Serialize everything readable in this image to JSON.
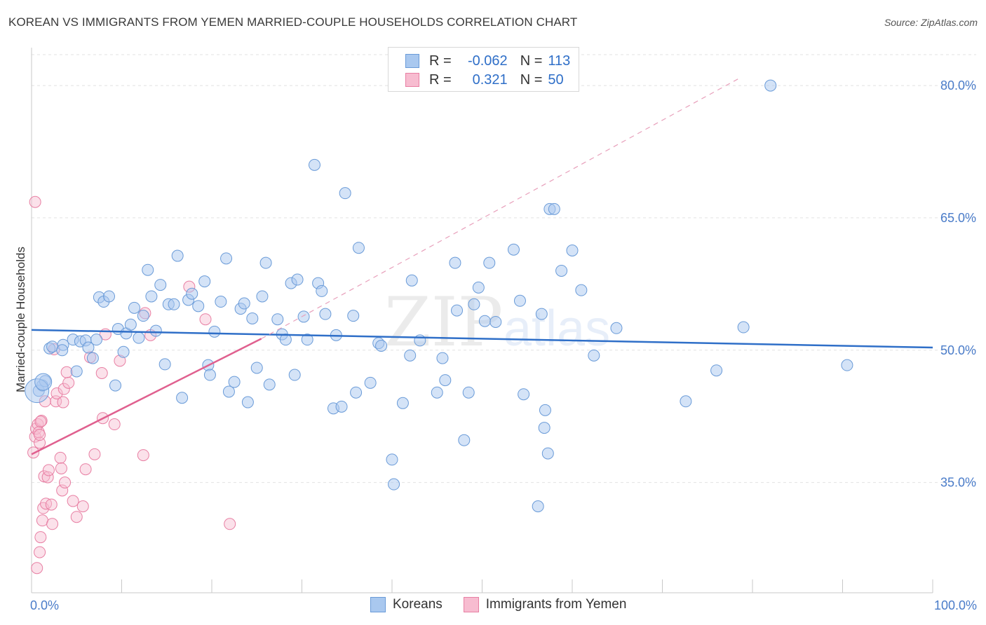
{
  "header": {
    "title": "KOREAN VS IMMIGRANTS FROM YEMEN MARRIED-COUPLE HOUSEHOLDS CORRELATION CHART",
    "source": "Source: ZipAtlas.com"
  },
  "watermark": {
    "zip": "ZIP",
    "atlas": "atlas"
  },
  "colors": {
    "koreans_fill": "#a9c8ef",
    "koreans_stroke": "#6a9bd8",
    "koreans_line": "#2f6fc8",
    "yemen_fill": "#f7bcd0",
    "yemen_stroke": "#e87fa3",
    "yemen_line": "#e0608f",
    "tick_label": "#4a7cc9",
    "grid": "#e2e2e2"
  },
  "legend": {
    "rows": [
      {
        "r_label": "R =",
        "r_value": "-0.062",
        "n_label": "N =",
        "n_value": "113"
      },
      {
        "r_label": "R =",
        "r_value": "0.321",
        "n_label": "N =",
        "n_value": "50"
      }
    ]
  },
  "bottom_legend": {
    "koreans": "Koreans",
    "yemen": "Immigrants from Yemen"
  },
  "chart_data": {
    "type": "scatter",
    "title": "KOREAN VS IMMIGRANTS FROM YEMEN MARRIED-COUPLE HOUSEHOLDS CORRELATION CHART",
    "xlabel": "",
    "ylabel": "Married-couple Households",
    "xlim": [
      0,
      100
    ],
    "ylim": [
      22.5,
      83.5
    ],
    "x_tick_labels": [
      "0.0%",
      "100.0%"
    ],
    "y_ticks": [
      35,
      50,
      65,
      80
    ],
    "y_tick_labels": [
      "35.0%",
      "50.0%",
      "65.0%",
      "80.0%"
    ],
    "grid": true,
    "series": [
      {
        "name": "Koreans",
        "r": -0.062,
        "n": 113,
        "trend": {
          "x": [
            0,
            100
          ],
          "y": [
            52.3,
            50.3
          ]
        },
        "points": [
          [
            0.8,
            45.4
          ],
          [
            1.2,
            46.0
          ],
          [
            1.5,
            46.5
          ],
          [
            2.0,
            50.2
          ],
          [
            2.3,
            50.4
          ],
          [
            3.5,
            50.6
          ],
          [
            3.4,
            50.0
          ],
          [
            4.6,
            51.2
          ],
          [
            5.4,
            51.0
          ],
          [
            5.0,
            47.6
          ],
          [
            6.0,
            51.1
          ],
          [
            6.3,
            50.3
          ],
          [
            6.8,
            49.1
          ],
          [
            7.2,
            51.2
          ],
          [
            7.5,
            56.0
          ],
          [
            8.0,
            55.5
          ],
          [
            8.6,
            56.1
          ],
          [
            9.3,
            46.0
          ],
          [
            9.6,
            52.4
          ],
          [
            10.2,
            49.8
          ],
          [
            10.5,
            51.9
          ],
          [
            11.0,
            52.9
          ],
          [
            11.4,
            54.8
          ],
          [
            11.9,
            51.4
          ],
          [
            12.4,
            53.9
          ],
          [
            12.9,
            59.1
          ],
          [
            13.3,
            56.1
          ],
          [
            13.8,
            52.2
          ],
          [
            14.3,
            57.4
          ],
          [
            14.8,
            48.4
          ],
          [
            15.2,
            55.2
          ],
          [
            15.8,
            55.2
          ],
          [
            16.2,
            60.7
          ],
          [
            16.7,
            44.6
          ],
          [
            17.4,
            55.7
          ],
          [
            17.8,
            56.4
          ],
          [
            18.5,
            55.0
          ],
          [
            19.2,
            57.8
          ],
          [
            19.6,
            48.3
          ],
          [
            19.8,
            47.2
          ],
          [
            20.3,
            52.1
          ],
          [
            21.0,
            55.5
          ],
          [
            21.6,
            60.4
          ],
          [
            21.9,
            45.3
          ],
          [
            22.5,
            46.4
          ],
          [
            23.2,
            54.7
          ],
          [
            23.6,
            55.3
          ],
          [
            24.0,
            44.1
          ],
          [
            24.5,
            53.6
          ],
          [
            25.0,
            48.0
          ],
          [
            25.6,
            56.1
          ],
          [
            26.0,
            59.9
          ],
          [
            26.4,
            46.1
          ],
          [
            27.3,
            53.5
          ],
          [
            27.8,
            51.8
          ],
          [
            28.2,
            51.2
          ],
          [
            28.8,
            57.6
          ],
          [
            29.2,
            47.2
          ],
          [
            29.5,
            58.0
          ],
          [
            30.2,
            53.8
          ],
          [
            30.6,
            51.2
          ],
          [
            31.4,
            71.0
          ],
          [
            31.8,
            57.6
          ],
          [
            32.2,
            56.7
          ],
          [
            32.6,
            54.1
          ],
          [
            33.5,
            43.4
          ],
          [
            33.8,
            51.7
          ],
          [
            34.4,
            43.6
          ],
          [
            34.8,
            67.8
          ],
          [
            35.7,
            53.9
          ],
          [
            36.0,
            45.2
          ],
          [
            36.3,
            61.6
          ],
          [
            37.6,
            46.3
          ],
          [
            38.5,
            50.8
          ],
          [
            38.8,
            50.5
          ],
          [
            40.0,
            37.6
          ],
          [
            40.2,
            34.8
          ],
          [
            41.2,
            44.0
          ],
          [
            42.0,
            49.4
          ],
          [
            42.2,
            57.9
          ],
          [
            43.1,
            51.1
          ],
          [
            45.0,
            45.2
          ],
          [
            45.6,
            49.1
          ],
          [
            45.9,
            46.6
          ],
          [
            47.0,
            59.9
          ],
          [
            47.2,
            54.5
          ],
          [
            48.0,
            39.8
          ],
          [
            48.5,
            45.2
          ],
          [
            49.1,
            55.2
          ],
          [
            49.6,
            57.1
          ],
          [
            50.3,
            53.3
          ],
          [
            50.8,
            59.9
          ],
          [
            51.5,
            53.2
          ],
          [
            53.5,
            61.4
          ],
          [
            54.2,
            55.6
          ],
          [
            54.6,
            45.0
          ],
          [
            56.2,
            32.3
          ],
          [
            56.6,
            54.1
          ],
          [
            57.0,
            43.2
          ],
          [
            56.9,
            41.2
          ],
          [
            57.3,
            38.3
          ],
          [
            57.5,
            66.0
          ],
          [
            58.8,
            59.0
          ],
          [
            60.0,
            61.3
          ],
          [
            61.0,
            56.8
          ],
          [
            62.4,
            49.4
          ],
          [
            64.9,
            52.5
          ],
          [
            72.6,
            44.2
          ],
          [
            76.0,
            47.7
          ],
          [
            79.0,
            52.6
          ],
          [
            82.0,
            80.0
          ],
          [
            90.5,
            48.3
          ],
          [
            58.0,
            66.0
          ]
        ]
      },
      {
        "name": "Immigrants from Yemen",
        "r": 0.321,
        "n": 50,
        "trend": {
          "x": [
            0,
            25.5
          ],
          "y": [
            38.2,
            51.3
          ]
        },
        "trend_extension": {
          "x": [
            25.5,
            78.5
          ],
          "y": [
            51.3,
            80.8
          ]
        },
        "points": [
          [
            0.2,
            38.4
          ],
          [
            0.4,
            40.2
          ],
          [
            0.5,
            41.1
          ],
          [
            0.7,
            41.6
          ],
          [
            0.8,
            40.7
          ],
          [
            0.9,
            39.5
          ],
          [
            0.6,
            25.3
          ],
          [
            0.9,
            27.1
          ],
          [
            1.0,
            28.8
          ],
          [
            1.2,
            30.7
          ],
          [
            1.3,
            32.1
          ],
          [
            1.4,
            35.7
          ],
          [
            1.6,
            32.6
          ],
          [
            1.8,
            35.6
          ],
          [
            1.9,
            36.4
          ],
          [
            2.2,
            32.5
          ],
          [
            2.3,
            30.3
          ],
          [
            2.5,
            50.1
          ],
          [
            2.7,
            44.2
          ],
          [
            2.8,
            45.1
          ],
          [
            3.2,
            37.8
          ],
          [
            3.3,
            36.6
          ],
          [
            3.4,
            34.1
          ],
          [
            3.5,
            44.1
          ],
          [
            3.6,
            45.6
          ],
          [
            3.7,
            35.0
          ],
          [
            3.9,
            47.5
          ],
          [
            4.1,
            46.3
          ],
          [
            4.6,
            32.9
          ],
          [
            5.0,
            31.1
          ],
          [
            5.7,
            32.3
          ],
          [
            6.0,
            36.5
          ],
          [
            6.5,
            49.2
          ],
          [
            7.0,
            38.2
          ],
          [
            7.8,
            47.4
          ],
          [
            7.9,
            42.3
          ],
          [
            8.2,
            51.8
          ],
          [
            9.2,
            41.6
          ],
          [
            9.8,
            48.8
          ],
          [
            12.4,
            38.1
          ],
          [
            12.6,
            54.2
          ],
          [
            13.2,
            51.7
          ],
          [
            17.5,
            57.2
          ],
          [
            19.3,
            53.5
          ],
          [
            22.0,
            30.3
          ],
          [
            1.1,
            42.0
          ],
          [
            0.4,
            66.8
          ],
          [
            1.0,
            41.9
          ],
          [
            1.5,
            44.2
          ],
          [
            0.9,
            40.4
          ]
        ]
      }
    ]
  }
}
